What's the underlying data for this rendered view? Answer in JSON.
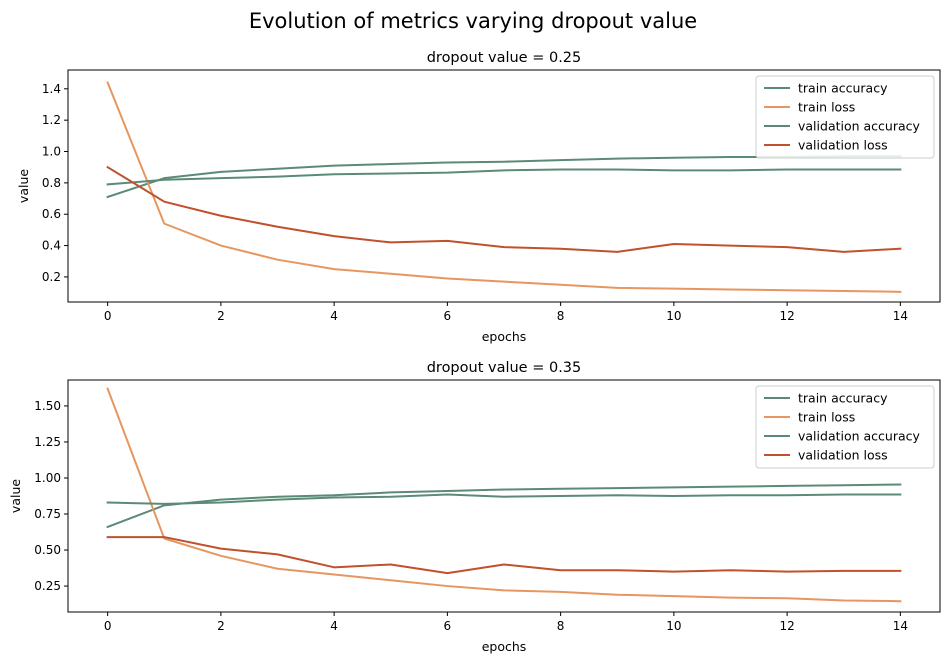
{
  "figure": {
    "suptitle": "Evolution of metrics varying dropout value"
  },
  "chart_data": [
    {
      "type": "line",
      "title": "dropout value = 0.25",
      "xlabel": "epochs",
      "ylabel": "value",
      "xlim": [
        -0.7,
        14.7
      ],
      "ylim": [
        0.04,
        1.52
      ],
      "xticks": [
        0,
        2,
        4,
        6,
        8,
        10,
        12,
        14
      ],
      "xtick_labels": [
        "0",
        "2",
        "4",
        "6",
        "8",
        "10",
        "12",
        "14"
      ],
      "yticks": [
        0.2,
        0.4,
        0.6,
        0.8,
        1.0,
        1.2,
        1.4
      ],
      "ytick_labels": [
        "0.2",
        "0.4",
        "0.6",
        "0.8",
        "1.0",
        "1.2",
        "1.4"
      ],
      "grid": false,
      "legend_position": "top-right",
      "x": [
        0,
        1,
        2,
        3,
        4,
        5,
        6,
        7,
        8,
        9,
        10,
        11,
        12,
        13,
        14
      ],
      "series": [
        {
          "name": "train accuracy",
          "color": "#5b8a76",
          "values": [
            0.71,
            0.83,
            0.87,
            0.89,
            0.91,
            0.92,
            0.93,
            0.935,
            0.945,
            0.955,
            0.96,
            0.965,
            0.965,
            0.97,
            0.97
          ]
        },
        {
          "name": "train loss",
          "color": "#e6975f",
          "values": [
            1.44,
            0.54,
            0.4,
            0.31,
            0.25,
            0.22,
            0.19,
            0.17,
            0.15,
            0.13,
            0.125,
            0.12,
            0.115,
            0.11,
            0.105
          ]
        },
        {
          "name": "validation accuracy",
          "color": "#5b8a76",
          "values": [
            0.79,
            0.82,
            0.83,
            0.84,
            0.855,
            0.86,
            0.865,
            0.88,
            0.885,
            0.885,
            0.88,
            0.88,
            0.885,
            0.885,
            0.885
          ]
        },
        {
          "name": "validation loss",
          "color": "#c1502e",
          "values": [
            0.9,
            0.68,
            0.59,
            0.52,
            0.46,
            0.42,
            0.43,
            0.39,
            0.38,
            0.36,
            0.41,
            0.4,
            0.39,
            0.36,
            0.38
          ]
        }
      ]
    },
    {
      "type": "line",
      "title": "dropout value = 0.35",
      "xlabel": "epochs",
      "ylabel": "value",
      "xlim": [
        -0.7,
        14.7
      ],
      "ylim": [
        0.07,
        1.68
      ],
      "xticks": [
        0,
        2,
        4,
        6,
        8,
        10,
        12,
        14
      ],
      "xtick_labels": [
        "0",
        "2",
        "4",
        "6",
        "8",
        "10",
        "12",
        "14"
      ],
      "yticks": [
        0.25,
        0.5,
        0.75,
        1.0,
        1.25,
        1.5
      ],
      "ytick_labels": [
        "0.25",
        "0.50",
        "0.75",
        "1.00",
        "1.25",
        "1.50"
      ],
      "grid": false,
      "legend_position": "top-right",
      "x": [
        0,
        1,
        2,
        3,
        4,
        5,
        6,
        7,
        8,
        9,
        10,
        11,
        12,
        13,
        14
      ],
      "series": [
        {
          "name": "train accuracy",
          "color": "#5b8a76",
          "values": [
            0.66,
            0.81,
            0.85,
            0.87,
            0.88,
            0.9,
            0.91,
            0.92,
            0.925,
            0.93,
            0.935,
            0.94,
            0.945,
            0.95,
            0.955
          ]
        },
        {
          "name": "train loss",
          "color": "#e6975f",
          "values": [
            1.62,
            0.58,
            0.46,
            0.37,
            0.33,
            0.29,
            0.25,
            0.22,
            0.21,
            0.19,
            0.18,
            0.17,
            0.165,
            0.15,
            0.145
          ]
        },
        {
          "name": "validation accuracy",
          "color": "#5b8a76",
          "values": [
            0.83,
            0.82,
            0.83,
            0.85,
            0.865,
            0.87,
            0.885,
            0.87,
            0.875,
            0.88,
            0.875,
            0.88,
            0.88,
            0.885,
            0.885
          ]
        },
        {
          "name": "validation loss",
          "color": "#c1502e",
          "values": [
            0.59,
            0.59,
            0.51,
            0.47,
            0.38,
            0.4,
            0.34,
            0.4,
            0.36,
            0.36,
            0.35,
            0.36,
            0.35,
            0.355,
            0.355
          ]
        }
      ]
    }
  ]
}
